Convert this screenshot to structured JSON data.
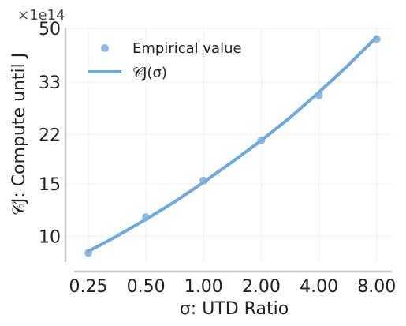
{
  "chart_data": {
    "type": "scatter",
    "x_scale": "log2",
    "y_scale": "log",
    "exponent_label": "×1e14",
    "xlabel": "σ: UTD Ratio",
    "ylabel": "𝒞J: Compute until J",
    "x_ticks": [
      {
        "value": 0.25,
        "label": "0.25"
      },
      {
        "value": 0.5,
        "label": "0.50"
      },
      {
        "value": 1.0,
        "label": "1.00"
      },
      {
        "value": 2.0,
        "label": "2.00"
      },
      {
        "value": 4.0,
        "label": "4.00"
      },
      {
        "value": 8.0,
        "label": "8.00"
      }
    ],
    "y_ticks": [
      {
        "value": 10,
        "label": "10"
      },
      {
        "value": 15,
        "label": "15"
      },
      {
        "value": 22,
        "label": "22"
      },
      {
        "value": 33,
        "label": "33"
      },
      {
        "value": 50,
        "label": "50"
      }
    ],
    "xlim": [
      0.19,
      9.6
    ],
    "ylim": [
      8.0,
      50.3
    ],
    "grid": true,
    "legend_position": "top-left",
    "series": [
      {
        "name": "Empirical value",
        "kind": "scatter",
        "color": "#7aaee0",
        "points": [
          {
            "x": 0.25,
            "y": 8.8
          },
          {
            "x": 0.5,
            "y": 11.6
          },
          {
            "x": 1.0,
            "y": 15.4
          },
          {
            "x": 2.0,
            "y": 21.0
          },
          {
            "x": 4.0,
            "y": 29.8
          },
          {
            "x": 8.0,
            "y": 46.0
          }
        ]
      },
      {
        "name": "𝒞J(σ)",
        "kind": "line",
        "color": "#6fa8dc",
        "points": [
          {
            "x": 0.25,
            "y": 8.9
          },
          {
            "x": 0.35,
            "y": 10.0
          },
          {
            "x": 0.5,
            "y": 11.4
          },
          {
            "x": 0.71,
            "y": 13.1
          },
          {
            "x": 1.0,
            "y": 15.2
          },
          {
            "x": 1.41,
            "y": 17.8
          },
          {
            "x": 2.0,
            "y": 21.0
          },
          {
            "x": 2.83,
            "y": 25.1
          },
          {
            "x": 4.0,
            "y": 30.5
          },
          {
            "x": 5.66,
            "y": 37.5
          },
          {
            "x": 8.0,
            "y": 46.8
          }
        ]
      }
    ]
  }
}
